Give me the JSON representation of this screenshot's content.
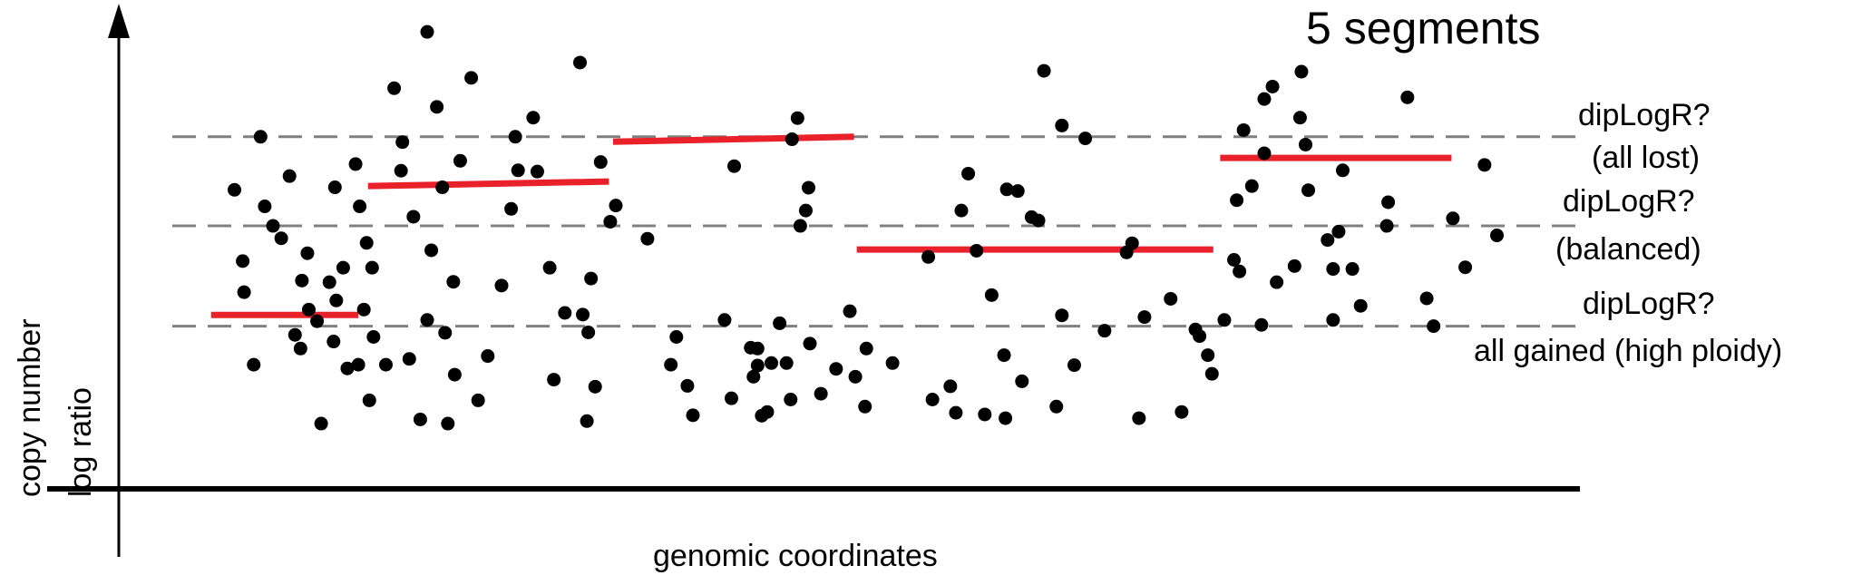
{
  "chart_data": {
    "type": "scatter",
    "title": "5 segments",
    "xlabel": "genomic coordinates",
    "ylabel_lines": [
      "copy number",
      "log ratio"
    ],
    "xlim": [
      0,
      100
    ],
    "ylim": [
      0,
      100
    ],
    "colors": {
      "points": "#000000",
      "segments": "#e8212a",
      "reference": "#808080",
      "axis": "#000000"
    },
    "reference_lines": [
      {
        "y": 79.7,
        "label_lines": [
          "dipLogR?",
          "(all lost)"
        ]
      },
      {
        "y": 58.2,
        "label_lines": [
          "dipLogR?",
          "(balanced)"
        ]
      },
      {
        "y": 34.0,
        "label_lines": [
          "dipLogR?",
          "all gained (high ploidy)"
        ]
      }
    ],
    "segments": [
      {
        "x": [
          3.8,
          14.5
        ],
        "y": [
          36.7,
          36.7
        ]
      },
      {
        "x": [
          15.2,
          32.7
        ],
        "y": [
          67.8,
          68.9
        ]
      },
      {
        "x": [
          33.0,
          50.5
        ],
        "y": [
          78.5,
          79.7
        ]
      },
      {
        "x": [
          50.7,
          76.6
        ],
        "y": [
          52.5,
          52.5
        ]
      },
      {
        "x": [
          77.1,
          93.9
        ],
        "y": [
          74.6,
          74.6
        ]
      }
    ],
    "points": [
      {
        "x": 5.5,
        "y": 66.9
      },
      {
        "x": 6.1,
        "y": 49.7
      },
      {
        "x": 6.2,
        "y": 42.2
      },
      {
        "x": 6.9,
        "y": 24.7
      },
      {
        "x": 7.4,
        "y": 79.7
      },
      {
        "x": 7.7,
        "y": 62.9
      },
      {
        "x": 8.3,
        "y": 58.2
      },
      {
        "x": 8.9,
        "y": 55.2
      },
      {
        "x": 9.5,
        "y": 70.2
      },
      {
        "x": 9.9,
        "y": 31.9
      },
      {
        "x": 10.3,
        "y": 28.6
      },
      {
        "x": 10.4,
        "y": 45.0
      },
      {
        "x": 10.8,
        "y": 51.6
      },
      {
        "x": 10.9,
        "y": 38.0
      },
      {
        "x": 11.5,
        "y": 35.2
      },
      {
        "x": 11.8,
        "y": 10.5
      },
      {
        "x": 12.4,
        "y": 44.6
      },
      {
        "x": 12.7,
        "y": 30.3
      },
      {
        "x": 12.8,
        "y": 67.5
      },
      {
        "x": 12.9,
        "y": 40.2
      },
      {
        "x": 13.4,
        "y": 48.1
      },
      {
        "x": 13.7,
        "y": 23.8
      },
      {
        "x": 14.3,
        "y": 73.1
      },
      {
        "x": 14.5,
        "y": 24.7
      },
      {
        "x": 14.6,
        "y": 62.9
      },
      {
        "x": 14.9,
        "y": 38.0
      },
      {
        "x": 15.1,
        "y": 54.1
      },
      {
        "x": 15.3,
        "y": 16.1
      },
      {
        "x": 15.5,
        "y": 48.1
      },
      {
        "x": 15.6,
        "y": 31.4
      },
      {
        "x": 16.5,
        "y": 24.7
      },
      {
        "x": 17.1,
        "y": 91.4
      },
      {
        "x": 17.6,
        "y": 71.5
      },
      {
        "x": 17.7,
        "y": 78.4
      },
      {
        "x": 18.2,
        "y": 26.1
      },
      {
        "x": 18.5,
        "y": 60.4
      },
      {
        "x": 19.0,
        "y": 11.5
      },
      {
        "x": 19.5,
        "y": 35.5
      },
      {
        "x": 19.5,
        "y": 105.0
      },
      {
        "x": 19.8,
        "y": 52.3
      },
      {
        "x": 20.2,
        "y": 86.9
      },
      {
        "x": 20.6,
        "y": 67.5
      },
      {
        "x": 20.8,
        "y": 32.4
      },
      {
        "x": 21.0,
        "y": 10.5
      },
      {
        "x": 21.4,
        "y": 44.7
      },
      {
        "x": 21.5,
        "y": 22.3
      },
      {
        "x": 21.9,
        "y": 73.9
      },
      {
        "x": 22.7,
        "y": 93.9
      },
      {
        "x": 23.2,
        "y": 16.1
      },
      {
        "x": 23.9,
        "y": 26.8
      },
      {
        "x": 24.9,
        "y": 43.8
      },
      {
        "x": 25.6,
        "y": 62.3
      },
      {
        "x": 25.9,
        "y": 79.7
      },
      {
        "x": 26.1,
        "y": 71.6
      },
      {
        "x": 27.2,
        "y": 84.3
      },
      {
        "x": 27.5,
        "y": 71.3
      },
      {
        "x": 28.4,
        "y": 48.1
      },
      {
        "x": 28.7,
        "y": 21.1
      },
      {
        "x": 29.5,
        "y": 37.2
      },
      {
        "x": 30.6,
        "y": 97.6
      },
      {
        "x": 30.8,
        "y": 36.8
      },
      {
        "x": 31.1,
        "y": 11.1
      },
      {
        "x": 31.2,
        "y": 32.5
      },
      {
        "x": 31.4,
        "y": 45.5
      },
      {
        "x": 31.7,
        "y": 19.4
      },
      {
        "x": 32.1,
        "y": 73.6
      },
      {
        "x": 32.8,
        "y": 59.2
      },
      {
        "x": 33.2,
        "y": 63.1
      },
      {
        "x": 35.5,
        "y": 55.1
      },
      {
        "x": 37.2,
        "y": 24.7
      },
      {
        "x": 37.6,
        "y": 31.4
      },
      {
        "x": 38.4,
        "y": 19.6
      },
      {
        "x": 38.8,
        "y": 12.5
      },
      {
        "x": 41.1,
        "y": 35.5
      },
      {
        "x": 41.6,
        "y": 16.6
      },
      {
        "x": 41.8,
        "y": 72.6
      },
      {
        "x": 43.0,
        "y": 28.8
      },
      {
        "x": 43.2,
        "y": 21.8
      },
      {
        "x": 43.5,
        "y": 24.5
      },
      {
        "x": 43.5,
        "y": 28.6
      },
      {
        "x": 43.8,
        "y": 12.4
      },
      {
        "x": 44.2,
        "y": 13.3
      },
      {
        "x": 44.5,
        "y": 25.1
      },
      {
        "x": 45.1,
        "y": 34.7
      },
      {
        "x": 45.6,
        "y": 25.1
      },
      {
        "x": 45.9,
        "y": 16.3
      },
      {
        "x": 46.0,
        "y": 79.1
      },
      {
        "x": 46.4,
        "y": 84.2
      },
      {
        "x": 46.6,
        "y": 58.2
      },
      {
        "x": 47.0,
        "y": 61.9
      },
      {
        "x": 47.2,
        "y": 67.4
      },
      {
        "x": 47.3,
        "y": 29.8
      },
      {
        "x": 48.1,
        "y": 17.7
      },
      {
        "x": 49.2,
        "y": 23.7
      },
      {
        "x": 50.2,
        "y": 37.6
      },
      {
        "x": 50.6,
        "y": 21.8
      },
      {
        "x": 51.3,
        "y": 14.6
      },
      {
        "x": 51.4,
        "y": 28.6
      },
      {
        "x": 53.3,
        "y": 25.1
      },
      {
        "x": 55.9,
        "y": 50.7
      },
      {
        "x": 56.2,
        "y": 16.3
      },
      {
        "x": 57.5,
        "y": 19.5
      },
      {
        "x": 57.9,
        "y": 13.1
      },
      {
        "x": 58.3,
        "y": 61.9
      },
      {
        "x": 58.8,
        "y": 70.8
      },
      {
        "x": 59.4,
        "y": 52.2
      },
      {
        "x": 60.0,
        "y": 12.7
      },
      {
        "x": 60.5,
        "y": 41.5
      },
      {
        "x": 61.4,
        "y": 27.0
      },
      {
        "x": 61.5,
        "y": 11.8
      },
      {
        "x": 61.6,
        "y": 67.0
      },
      {
        "x": 62.4,
        "y": 66.6
      },
      {
        "x": 62.7,
        "y": 20.7
      },
      {
        "x": 63.4,
        "y": 60.3
      },
      {
        "x": 63.9,
        "y": 59.5
      },
      {
        "x": 64.3,
        "y": 95.6
      },
      {
        "x": 65.2,
        "y": 14.6
      },
      {
        "x": 65.6,
        "y": 36.6
      },
      {
        "x": 65.6,
        "y": 82.4
      },
      {
        "x": 66.5,
        "y": 24.6
      },
      {
        "x": 67.3,
        "y": 79.3
      },
      {
        "x": 68.7,
        "y": 32.9
      },
      {
        "x": 70.3,
        "y": 51.8
      },
      {
        "x": 70.7,
        "y": 54.0
      },
      {
        "x": 71.2,
        "y": 11.8
      },
      {
        "x": 71.6,
        "y": 36.2
      },
      {
        "x": 73.5,
        "y": 40.6
      },
      {
        "x": 74.3,
        "y": 13.3
      },
      {
        "x": 75.3,
        "y": 33.2
      },
      {
        "x": 75.6,
        "y": 31.6
      },
      {
        "x": 76.2,
        "y": 27.0
      },
      {
        "x": 76.5,
        "y": 22.5
      },
      {
        "x": 77.4,
        "y": 35.5
      },
      {
        "x": 78.1,
        "y": 50.0
      },
      {
        "x": 78.3,
        "y": 64.4
      },
      {
        "x": 78.5,
        "y": 47.2
      },
      {
        "x": 78.8,
        "y": 81.3
      },
      {
        "x": 79.4,
        "y": 67.8
      },
      {
        "x": 80.1,
        "y": 34.3
      },
      {
        "x": 80.3,
        "y": 88.8
      },
      {
        "x": 80.3,
        "y": 75.7
      },
      {
        "x": 80.9,
        "y": 91.8
      },
      {
        "x": 81.2,
        "y": 44.6
      },
      {
        "x": 82.5,
        "y": 48.5
      },
      {
        "x": 82.9,
        "y": 84.3
      },
      {
        "x": 83.0,
        "y": 95.4
      },
      {
        "x": 83.3,
        "y": 77.8
      },
      {
        "x": 83.5,
        "y": 66.8
      },
      {
        "x": 84.9,
        "y": 54.8
      },
      {
        "x": 85.3,
        "y": 47.8
      },
      {
        "x": 85.3,
        "y": 35.5
      },
      {
        "x": 85.7,
        "y": 56.8
      },
      {
        "x": 86.0,
        "y": 71.6
      },
      {
        "x": 86.7,
        "y": 47.8
      },
      {
        "x": 87.3,
        "y": 38.9
      },
      {
        "x": 89.2,
        "y": 58.2
      },
      {
        "x": 89.3,
        "y": 63.9
      },
      {
        "x": 90.7,
        "y": 89.2
      },
      {
        "x": 92.1,
        "y": 40.7
      },
      {
        "x": 92.6,
        "y": 34.0
      },
      {
        "x": 94.0,
        "y": 60.0
      },
      {
        "x": 94.9,
        "y": 48.2
      },
      {
        "x": 96.3,
        "y": 72.9
      },
      {
        "x": 97.2,
        "y": 55.9
      }
    ]
  }
}
